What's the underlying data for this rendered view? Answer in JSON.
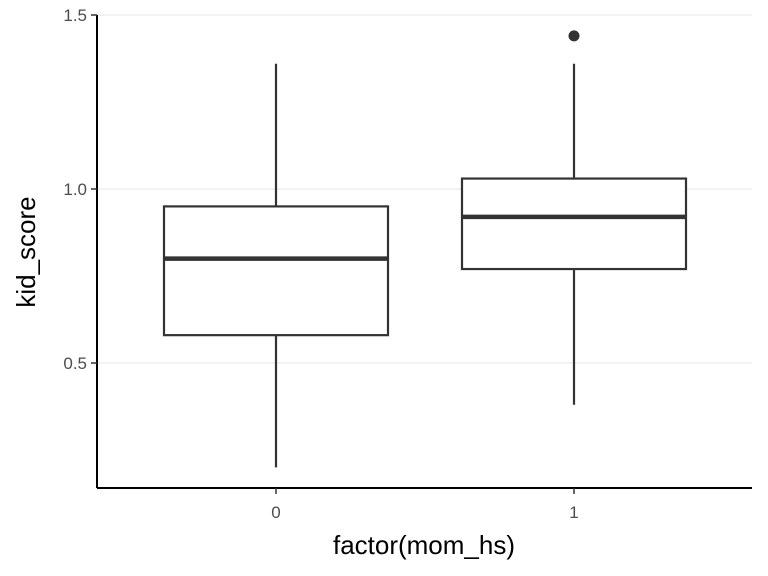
{
  "chart_data": {
    "type": "boxplot",
    "xlabel": "factor(mom_hs)",
    "ylabel": "kid_score",
    "categories": [
      "0",
      "1"
    ],
    "ylim": [
      0.13,
      1.5
    ],
    "yticks": [
      {
        "value": 0.5,
        "label": "0.5"
      },
      {
        "value": 1.0,
        "label": "1.0"
      },
      {
        "value": 1.5,
        "label": "1.5"
      }
    ],
    "grid": "horizontal major",
    "boxes": [
      {
        "category": "0",
        "whisker_low": 0.2,
        "q1": 0.58,
        "median": 0.8,
        "q3": 0.95,
        "whisker_high": 1.36,
        "outliers": []
      },
      {
        "category": "1",
        "whisker_low": 0.38,
        "q1": 0.77,
        "median": 0.92,
        "q3": 1.03,
        "whisker_high": 1.36,
        "outliers": [
          1.44
        ]
      }
    ],
    "colors": {
      "grid": "#ebebeb",
      "box_stroke": "#333333",
      "axis": "#000000"
    }
  }
}
